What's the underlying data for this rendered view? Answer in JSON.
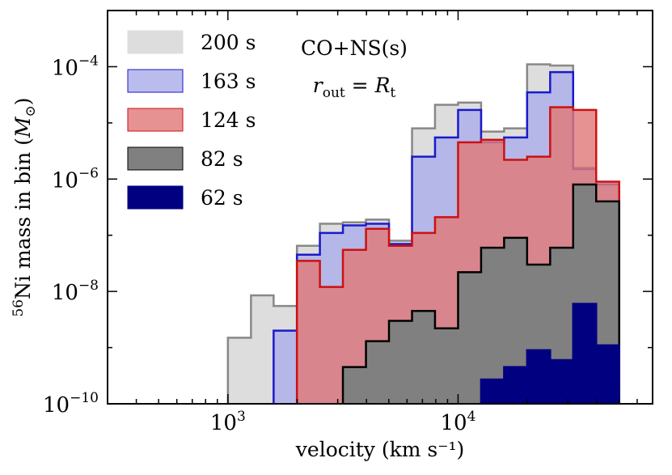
{
  "chart_data": {
    "type": "histogram",
    "xscale": "log",
    "yscale": "log",
    "xlim": [
      300,
      70000
    ],
    "ylim": [
      1e-10,
      0.001
    ],
    "xlabel": "velocity (km s⁻¹)",
    "ylabel_parts": {
      "sup": "56",
      "main": "Ni mass in bin (",
      "sym": "M",
      "sub": "⊙",
      "close": ")"
    },
    "x_ticks": [
      {
        "value": 1000,
        "base": "10",
        "exp": "3"
      },
      {
        "value": 10000,
        "base": "10",
        "exp": "4"
      }
    ],
    "y_ticks": [
      {
        "value": 1e-10,
        "base": "10",
        "exp": "−10"
      },
      {
        "value": 1e-08,
        "base": "10",
        "exp": "−8"
      },
      {
        "value": 1e-06,
        "base": "10",
        "exp": "−6"
      },
      {
        "value": 0.0001,
        "base": "10",
        "exp": "−4"
      }
    ],
    "annotations": {
      "line1": "CO+NS(s)",
      "line2_var": "r",
      "line2_sub": "out",
      "line2_eq": " = ",
      "line2_var2": "R",
      "line2_sub2": "t"
    },
    "legend_position": "upper-left",
    "series": [
      {
        "name": "200 s",
        "fill": "#dddddd",
        "stroke": "#888888",
        "fill_opacity": 1,
        "edges": [
          1000,
          1260,
          1580,
          1995,
          2510,
          3160,
          3980,
          5010,
          6310,
          7940,
          10000,
          12590,
          15850,
          19950,
          25120,
          31620,
          39810,
          50120
        ],
        "values": [
          1.5e-09,
          8.5e-09,
          5.5e-09,
          6.5e-08,
          1.6e-07,
          1.7e-07,
          1.9e-07,
          8e-08,
          8e-06,
          2.1e-05,
          2.3e-05,
          7e-06,
          8e-06,
          0.00011,
          0.000105,
          1.6e-06,
          8e-07
        ]
      },
      {
        "name": "163 s",
        "fill": "#aeb0ea",
        "stroke": "#1a1acc",
        "fill_opacity": 0.85,
        "edges": [
          1580,
          1995,
          2510,
          3160,
          3980,
          5010,
          6310,
          7940,
          10000,
          12590,
          15850,
          19950,
          25120,
          31620,
          39810,
          50120
        ],
        "values": [
          2e-09,
          4.5e-08,
          1.1e-07,
          1.5e-07,
          1.6e-07,
          7e-08,
          2.5e-06,
          5.5e-06,
          1.7e-05,
          4.5e-06,
          5.5e-06,
          3.5e-05,
          8e-05,
          1.5e-06,
          8e-07
        ]
      },
      {
        "name": "124 s",
        "fill": "#e07a7a",
        "stroke": "#cc1111",
        "fill_opacity": 0.82,
        "edges": [
          1995,
          2510,
          3160,
          3980,
          5010,
          6310,
          7940,
          10000,
          12590,
          15850,
          19950,
          25120,
          31620,
          39810,
          50120
        ],
        "values": [
          3.5e-08,
          1.2e-08,
          5.5e-08,
          1.3e-07,
          6.5e-08,
          1.1e-07,
          2.1e-07,
          4.5e-06,
          5e-06,
          2.2e-06,
          2.5e-06,
          1.9e-05,
          1.7e-05,
          9e-07
        ]
      },
      {
        "name": "82 s",
        "fill": "#808080",
        "stroke": "#000000",
        "fill_opacity": 1,
        "edges": [
          3160,
          3980,
          5010,
          6310,
          7940,
          10000,
          12590,
          15850,
          19950,
          25120,
          31620,
          39810,
          50120
        ],
        "values": [
          4.5e-10,
          1.3e-09,
          3e-09,
          4.5e-09,
          2.2e-09,
          2.2e-08,
          6e-08,
          9e-08,
          3e-08,
          6e-08,
          8e-07,
          4e-07
        ]
      },
      {
        "name": "62 s",
        "fill": "#000080",
        "stroke": "#000080",
        "fill_opacity": 1,
        "edges": [
          12590,
          15850,
          19950,
          25120,
          31620,
          39810,
          50120
        ],
        "values": [
          2.7e-10,
          4.5e-10,
          9e-10,
          6e-10,
          6e-09,
          1.1e-09
        ]
      }
    ]
  }
}
